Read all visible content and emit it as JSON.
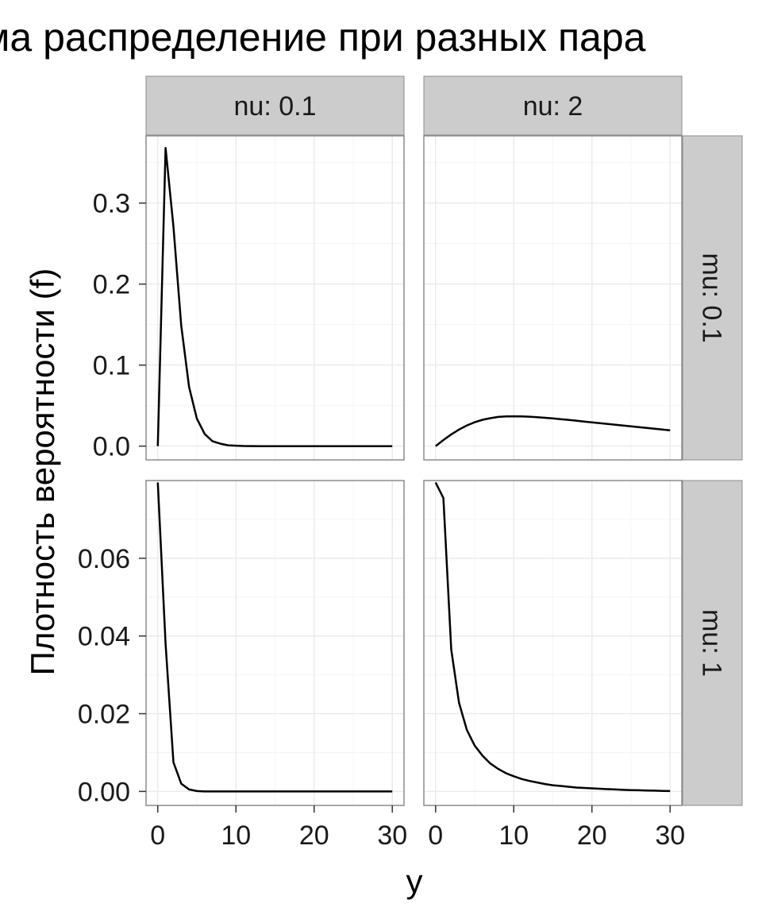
{
  "chart_data": {
    "type": "line",
    "title": "ма распределение при разных пара",
    "xlabel": "y",
    "ylabel": "Плотность вероятности (f)",
    "facet_cols": [
      "nu: 0.1",
      "nu: 2"
    ],
    "facet_rows": [
      "mu: 0.1",
      "mu: 1"
    ],
    "grid": true,
    "colors": {
      "panel_bg": "#ffffff",
      "panel_border": "#8c8c8c",
      "grid_major": "#ebebeb",
      "grid_minor": "#f5f5f5",
      "strip_bg": "#cccccc",
      "line": "#000000",
      "tick": "#333333"
    },
    "x_ticks": [
      "0",
      "10",
      "20",
      "30"
    ],
    "rows": [
      {
        "label": "mu: 0.1",
        "ylim": [
          -0.017,
          0.383
        ],
        "y_ticks": [
          "0.0",
          "0.1",
          "0.2",
          "0.3"
        ],
        "panels": [
          {
            "col": "nu: 0.1",
            "x": [
              0,
              1,
              2,
              3,
              4,
              5,
              6,
              7,
              8,
              9,
              10,
              11,
              12,
              13,
              14,
              15,
              16,
              17,
              18,
              19,
              20,
              21,
              22,
              23,
              24,
              25,
              26,
              27,
              28,
              29,
              30
            ],
            "y": [
              0,
              0.368,
              0.271,
              0.149,
              0.073,
              0.034,
              0.015,
              0.006,
              0.003,
              0.001,
              0.0005,
              0.0002,
              0.0001,
              0,
              0,
              0,
              0,
              0,
              0,
              0,
              0,
              0,
              0,
              0,
              0,
              0,
              0,
              0,
              0,
              0,
              0
            ]
          },
          {
            "col": "nu: 2",
            "x": [
              0,
              1,
              2,
              3,
              4,
              5,
              6,
              7,
              8,
              9,
              10,
              11,
              12,
              13,
              14,
              15,
              16,
              17,
              18,
              19,
              20,
              21,
              22,
              23,
              24,
              25,
              26,
              27,
              28,
              29,
              30
            ],
            "y": [
              0,
              0.0075,
              0.0145,
              0.0205,
              0.0255,
              0.0295,
              0.0325,
              0.0345,
              0.036,
              0.0366,
              0.0368,
              0.0367,
              0.0363,
              0.0357,
              0.035,
              0.0342,
              0.0333,
              0.0324,
              0.0314,
              0.0304,
              0.0294,
              0.0284,
              0.0274,
              0.0264,
              0.0254,
              0.0244,
              0.0234,
              0.0224,
              0.0214,
              0.0205,
              0.0195
            ]
          }
        ]
      },
      {
        "label": "mu: 1",
        "ylim": [
          -0.0036,
          0.08
        ],
        "y_ticks": [
          "0.00",
          "0.02",
          "0.04",
          "0.06"
        ],
        "panels": [
          {
            "col": "nu: 0.1",
            "x": [
              0,
              1,
              2,
              3,
              4,
              5,
              6,
              7,
              8,
              9,
              10,
              11,
              12,
              13,
              14,
              15,
              16,
              17,
              18,
              19,
              20,
              21,
              22,
              23,
              24,
              25,
              26,
              27,
              28,
              29,
              30
            ],
            "y": [
              0.0795,
              0.038,
              0.0075,
              0.002,
              0.0005,
              0.0001,
              0,
              0,
              0,
              0,
              0,
              0,
              0,
              0,
              0,
              0,
              0,
              0,
              0,
              0,
              0,
              0,
              0,
              0,
              0,
              0,
              0,
              0,
              0,
              0,
              0
            ]
          },
          {
            "col": "nu: 2",
            "x": [
              0,
              1,
              2,
              3,
              4,
              5,
              6,
              7,
              8,
              9,
              10,
              11,
              12,
              13,
              14,
              15,
              16,
              17,
              18,
              19,
              20,
              21,
              22,
              23,
              24,
              25,
              26,
              27,
              28,
              29,
              30
            ],
            "y": [
              0.0795,
              0.0755,
              0.0365,
              0.0228,
              0.0158,
              0.0118,
              0.0092,
              0.0072,
              0.0058,
              0.0047,
              0.0039,
              0.0032,
              0.0027,
              0.0023,
              0.0019,
              0.0016,
              0.0014,
              0.0012,
              0.001,
              0.0009,
              0.0008,
              0.0007,
              0.0006,
              0.0005,
              0.0004,
              0.00035,
              0.0003,
              0.00025,
              0.0002,
              0.00015,
              0.0001
            ]
          }
        ]
      }
    ]
  }
}
